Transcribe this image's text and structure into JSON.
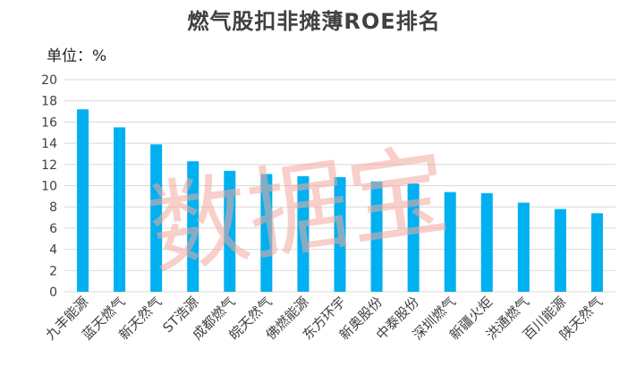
{
  "chart_data": {
    "type": "bar",
    "title": "燃气股扣非摊薄ROE排名",
    "unit_label": "单位：%",
    "xlabel": "",
    "ylabel": "",
    "ylim": [
      0,
      20
    ],
    "yticks": [
      0,
      2,
      4,
      6,
      8,
      10,
      12,
      14,
      16,
      18,
      20
    ],
    "grid": true,
    "bar_color": "#00b0f0",
    "categories": [
      "九丰能源",
      "蓝天燃气",
      "新天然气",
      "ST浩源",
      "成都燃气",
      "皖天然气",
      "佛燃能源",
      "东方环宇",
      "新奥股份",
      "中泰股份",
      "深圳燃气",
      "新疆火炬",
      "洪通燃气",
      "百川能源",
      "陕天然气"
    ],
    "values": [
      17.2,
      15.5,
      13.9,
      12.3,
      11.4,
      11.1,
      10.9,
      10.8,
      10.4,
      10.2,
      9.4,
      9.3,
      8.4,
      7.8,
      7.4
    ]
  },
  "watermark": "数据宝"
}
